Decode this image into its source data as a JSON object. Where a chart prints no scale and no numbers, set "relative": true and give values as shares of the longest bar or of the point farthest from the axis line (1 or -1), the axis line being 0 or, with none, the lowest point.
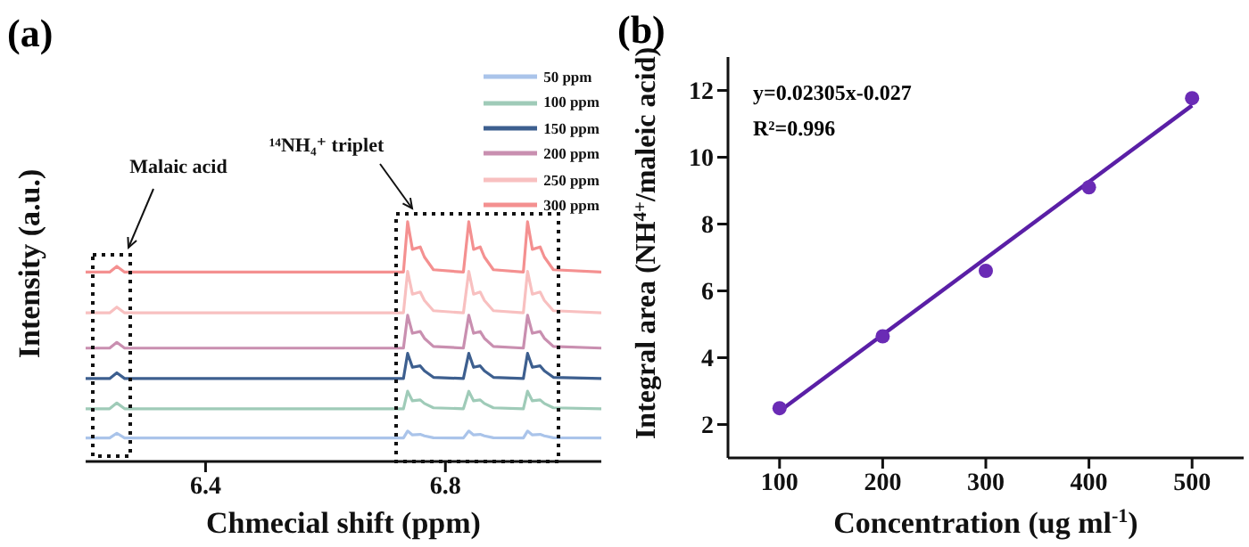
{
  "chart_data": [
    {
      "type": "line",
      "title": "(a)",
      "xlabel": "Chmecial shift (ppm)",
      "ylabel": "Intensity (a.u.)",
      "relative": true,
      "xlim": [
        6.2,
        7.06
      ],
      "xticks": [
        6.4,
        6.8
      ],
      "legend": "top right",
      "grid": false,
      "marker": "none",
      "x": [
        6.2,
        6.24,
        6.252,
        6.265,
        6.3,
        6.5,
        6.72,
        6.73,
        6.737,
        6.745,
        6.758,
        6.765,
        6.78,
        6.83,
        6.839,
        6.847,
        6.858,
        6.865,
        6.88,
        6.93,
        6.937,
        6.945,
        6.958,
        6.965,
        6.98,
        7.06
      ],
      "series": [
        {
          "name": "50 ppm",
          "color": "#aac4ea",
          "values": [
            0.098,
            0.098,
            0.118,
            0.098,
            0.098,
            0.098,
            0.098,
            0.098,
            0.127,
            0.111,
            0.113,
            0.107,
            0.099,
            0.098,
            0.127,
            0.111,
            0.113,
            0.107,
            0.099,
            0.098,
            0.127,
            0.111,
            0.113,
            0.107,
            0.099,
            0.098
          ]
        },
        {
          "name": "100 ppm",
          "color": "#9fcbb8",
          "values": [
            0.22,
            0.22,
            0.244,
            0.22,
            0.22,
            0.22,
            0.22,
            0.22,
            0.293,
            0.253,
            0.257,
            0.242,
            0.224,
            0.22,
            0.293,
            0.253,
            0.257,
            0.242,
            0.224,
            0.22,
            0.293,
            0.253,
            0.257,
            0.242,
            0.224,
            0.22
          ]
        },
        {
          "name": "150 ppm",
          "color": "#3d5f8f",
          "values": [
            0.346,
            0.346,
            0.37,
            0.346,
            0.346,
            0.346,
            0.346,
            0.346,
            0.451,
            0.393,
            0.399,
            0.378,
            0.351,
            0.346,
            0.451,
            0.393,
            0.399,
            0.378,
            0.351,
            0.346,
            0.451,
            0.393,
            0.399,
            0.378,
            0.351,
            0.346
          ]
        },
        {
          "name": "200 ppm",
          "color": "#c98fb0",
          "values": [
            0.473,
            0.473,
            0.497,
            0.473,
            0.473,
            0.473,
            0.473,
            0.473,
            0.61,
            0.535,
            0.542,
            0.514,
            0.48,
            0.473,
            0.61,
            0.535,
            0.542,
            0.514,
            0.48,
            0.473,
            0.61,
            0.535,
            0.542,
            0.514,
            0.48,
            0.473
          ]
        },
        {
          "name": "250 ppm",
          "color": "#f8c0c0",
          "values": [
            0.62,
            0.62,
            0.644,
            0.62,
            0.62,
            0.62,
            0.62,
            0.62,
            0.793,
            0.698,
            0.707,
            0.672,
            0.629,
            0.62,
            0.793,
            0.698,
            0.707,
            0.672,
            0.629,
            0.62,
            0.793,
            0.698,
            0.707,
            0.672,
            0.629,
            0.62
          ]
        },
        {
          "name": "300 ppm",
          "color": "#f49090",
          "values": [
            0.79,
            0.79,
            0.814,
            0.79,
            0.79,
            0.79,
            0.79,
            0.79,
            1.0,
            0.885,
            0.895,
            0.853,
            0.8,
            0.79,
            1.0,
            0.885,
            0.895,
            0.853,
            0.8,
            0.79,
            1.0,
            0.885,
            0.895,
            0.853,
            0.8,
            0.79
          ]
        }
      ],
      "annotations": [
        "Malaic acid",
        "¹⁴NH₄⁺ triplet"
      ]
    },
    {
      "type": "scatter",
      "title": "(b)",
      "xlabel": "Concentration (ug ml$^{-1}$)",
      "ylabel": "Integral area (NH$^{4+}$/maleic acid)",
      "xlim": [
        50,
        550
      ],
      "xticks": [
        100,
        200,
        300,
        400,
        500
      ],
      "ylim": [
        1,
        13
      ],
      "yticks": [
        2,
        4,
        6,
        8,
        10,
        12
      ],
      "grid": false,
      "legend": false,
      "annotations": [
        "y=0.02305x-0.027",
        "R²=0.996"
      ],
      "series": [
        {
          "type": "scatter",
          "marker": "circle",
          "color": "#6a2bb5",
          "x": [
            100,
            200,
            300,
            400,
            500
          ],
          "values": [
            2.49,
            4.64,
            6.6,
            9.1,
            11.77
          ]
        },
        {
          "type": "line",
          "color": "#5a1fa6",
          "x": [
            100,
            500
          ],
          "values": [
            2.4,
            11.55
          ]
        }
      ]
    }
  ]
}
